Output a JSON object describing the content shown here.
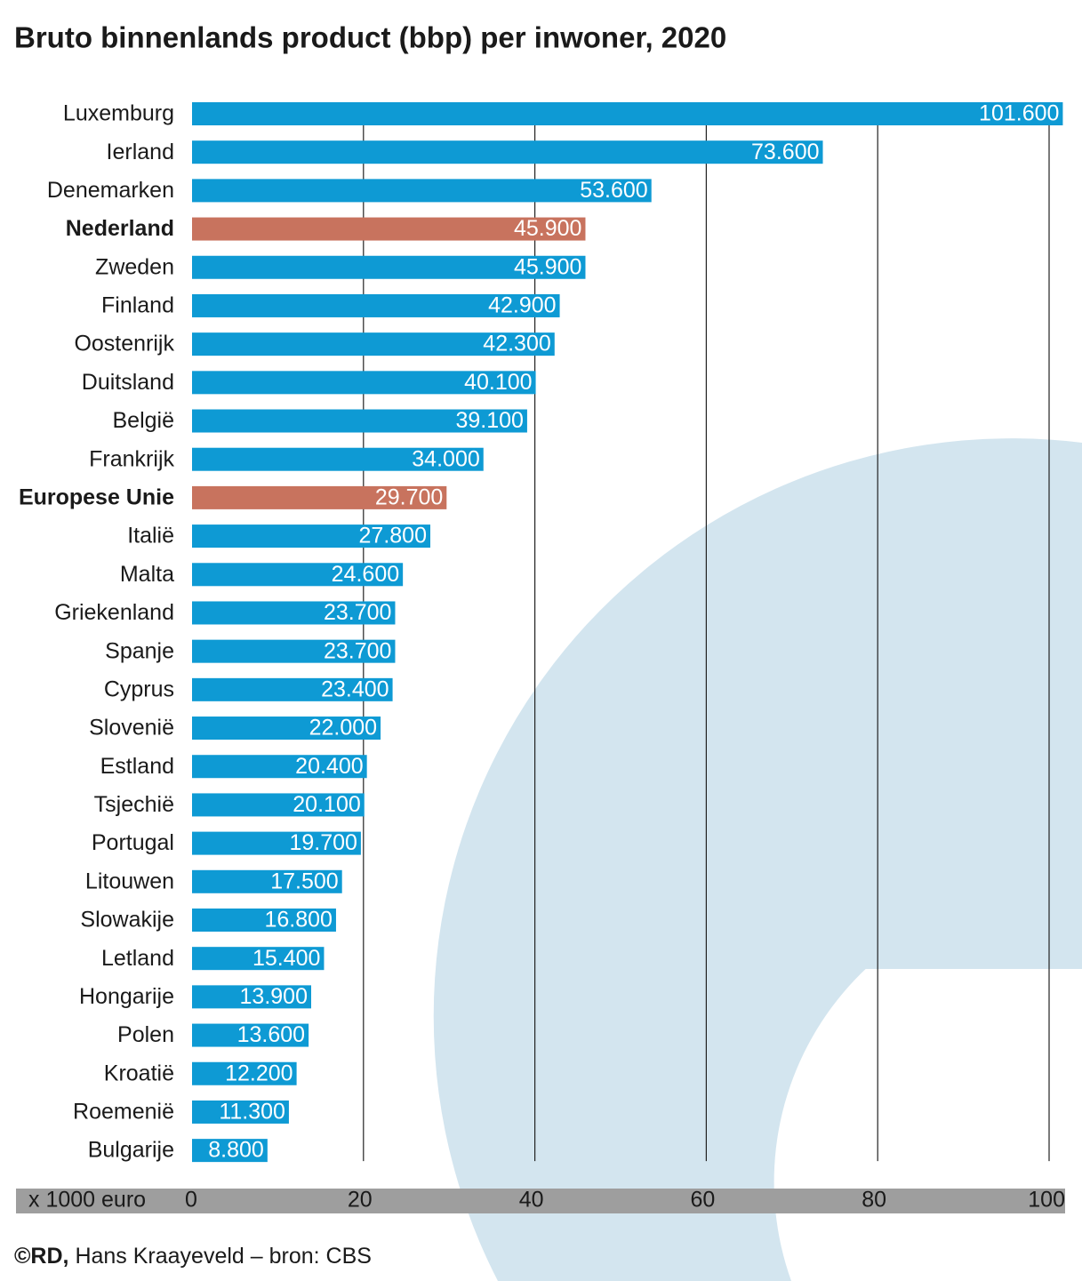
{
  "chart_data": {
    "type": "barh",
    "title": "Bruto binnenlands product (bbp) per inwoner, 2020",
    "x_label": "x 1000 euro",
    "source": {
      "prefix": "©RD,",
      "text": "Hans Kraayeveld – bron: CBS"
    },
    "categories": [
      "Luxemburg",
      "Ierland",
      "Denemarken",
      "Nederland",
      "Zweden",
      "Finland",
      "Oostenrijk",
      "Duitsland",
      "België",
      "Frankrijk",
      "Europese Unie",
      "Italië",
      "Malta",
      "Griekenland",
      "Spanje",
      "Cyprus",
      "Slovenië",
      "Estland",
      "Tsjechië",
      "Portugal",
      "Litouwen",
      "Slowakije",
      "Letland",
      "Hongarije",
      "Polen",
      "Kroatië",
      "Roemenië",
      "Bulgarije"
    ],
    "values": [
      101.6,
      73.6,
      53.6,
      45.9,
      45.9,
      42.9,
      42.3,
      40.1,
      39.1,
      34.0,
      29.7,
      27.8,
      24.6,
      23.7,
      23.7,
      23.4,
      22.0,
      20.4,
      20.1,
      19.7,
      17.5,
      16.8,
      15.4,
      13.9,
      13.6,
      12.2,
      11.3,
      8.8
    ],
    "value_labels": [
      "101.600",
      "73.600",
      "53.600",
      "45.900",
      "45.900",
      "42.900",
      "42.300",
      "40.100",
      "39.100",
      "34.000",
      "29.700",
      "27.800",
      "24.600",
      "23.700",
      "23.700",
      "23.400",
      "22.000",
      "20.400",
      "20.100",
      "19.700",
      "17.500",
      "16.800",
      "15.400",
      "13.900",
      "13.600",
      "12.200",
      "11.300",
      "8.800"
    ],
    "color": "#0e9ad4",
    "bar_colors": [
      "#0e9ad4",
      "#0e9ad4",
      "#0e9ad4",
      "#c8735e",
      "#0e9ad4",
      "#0e9ad4",
      "#0e9ad4",
      "#0e9ad4",
      "#0e9ad4",
      "#0e9ad4",
      "#c8735e",
      "#0e9ad4",
      "#0e9ad4",
      "#0e9ad4",
      "#0e9ad4",
      "#0e9ad4",
      "#0e9ad4",
      "#0e9ad4",
      "#0e9ad4",
      "#0e9ad4",
      "#0e9ad4",
      "#0e9ad4",
      "#0e9ad4",
      "#0e9ad4",
      "#0e9ad4",
      "#0e9ad4",
      "#0e9ad4",
      "#0e9ad4"
    ],
    "xlim": [
      0,
      100
    ],
    "xticks": [
      0,
      20,
      40,
      60,
      80,
      100
    ],
    "grid": true
  }
}
